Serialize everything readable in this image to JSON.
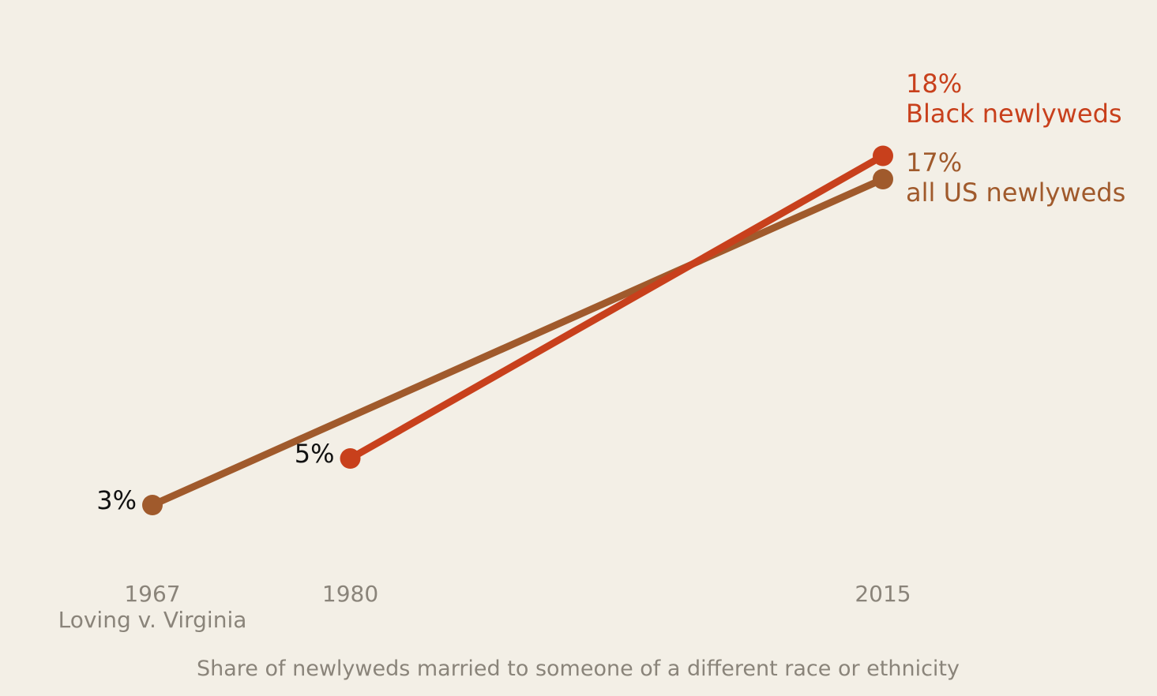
{
  "chart_data": {
    "type": "line",
    "x_ticks": [
      "1967",
      "1980",
      "2015"
    ],
    "x_tick_note": "Loving v. Virginia",
    "caption": "Share of newlyweds married to someone of a different race or ethnicity",
    "series": [
      {
        "name": "all US newlyweds",
        "color": "#a05a2c",
        "points": [
          {
            "x": 1967,
            "y": 3
          },
          {
            "x": 2015,
            "y": 17
          }
        ],
        "start_label": "3%",
        "end_value_label": "17%",
        "end_name_label": "all US newlyweds"
      },
      {
        "name": "Black newlyweds",
        "color": "#c8401c",
        "points": [
          {
            "x": 1980,
            "y": 5
          },
          {
            "x": 2015,
            "y": 18
          }
        ],
        "start_label": "5%",
        "end_value_label": "18%",
        "end_name_label": "Black newlyweds"
      }
    ],
    "ylim": [
      0,
      20
    ],
    "grid": false,
    "start_label_color": "#111111"
  }
}
